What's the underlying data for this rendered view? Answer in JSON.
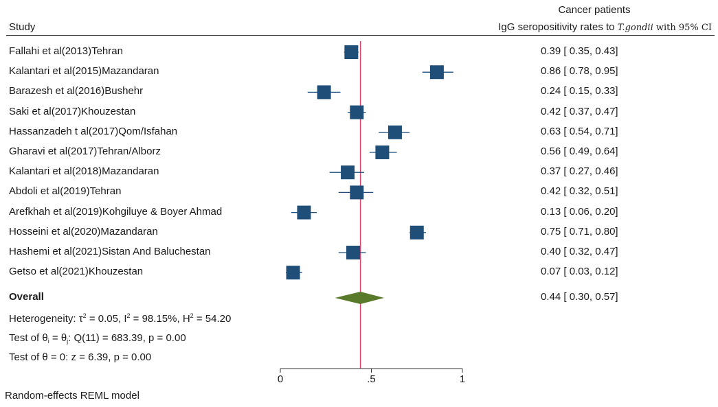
{
  "header": {
    "study_label": "Study",
    "group_label": "Cancer patients",
    "metric_prefix": "IgG seropositivity rates to ",
    "metric_species": "T.gondii",
    "metric_suffix": " with 95% CI"
  },
  "chart_data": {
    "type": "forest",
    "xaxis": {
      "ticks": [
        0,
        0.5,
        1
      ],
      "tick_labels": [
        "0",
        ".5",
        "1"
      ],
      "xlim": [
        0,
        1
      ]
    },
    "overall_line": 0.44,
    "studies": [
      {
        "name": "Fallahi et al(2013)Tehran",
        "est": 0.39,
        "lo": 0.35,
        "hi": 0.43,
        "text": "0.39 [ 0.35,  0.43]"
      },
      {
        "name": "Kalantari et al(2015)Mazandaran",
        "est": 0.86,
        "lo": 0.78,
        "hi": 0.95,
        "text": "0.86 [ 0.78,  0.95]"
      },
      {
        "name": "Barazesh et al(2016)Bushehr",
        "est": 0.24,
        "lo": 0.15,
        "hi": 0.33,
        "text": "0.24 [ 0.15,  0.33]"
      },
      {
        "name": "Saki et al(2017)Khouzestan",
        "est": 0.42,
        "lo": 0.37,
        "hi": 0.47,
        "text": "0.42 [ 0.37,  0.47]"
      },
      {
        "name": "Hassanzadeh t al(2017)Qom/Isfahan",
        "est": 0.63,
        "lo": 0.54,
        "hi": 0.71,
        "text": "0.63 [ 0.54,  0.71]"
      },
      {
        "name": "Gharavi et al(2017)Tehran/Alborz",
        "est": 0.56,
        "lo": 0.49,
        "hi": 0.64,
        "text": "0.56 [ 0.49,  0.64]"
      },
      {
        "name": "Kalantari et al(2018)Mazandaran",
        "est": 0.37,
        "lo": 0.27,
        "hi": 0.46,
        "text": "0.37 [ 0.27,  0.46]"
      },
      {
        "name": "Abdoli et al(2019)Tehran",
        "est": 0.42,
        "lo": 0.32,
        "hi": 0.51,
        "text": "0.42 [ 0.32,  0.51]"
      },
      {
        "name": "Arefkhah et al(2019)Kohgiluye & Boyer Ahmad",
        "est": 0.13,
        "lo": 0.06,
        "hi": 0.2,
        "text": "0.13 [ 0.06,  0.20]"
      },
      {
        "name": "Hosseini et al(2020)Mazandaran",
        "est": 0.75,
        "lo": 0.71,
        "hi": 0.8,
        "text": "0.75 [ 0.71,  0.80]"
      },
      {
        "name": "Hashemi et al(2021)Sistan And Baluchestan",
        "est": 0.4,
        "lo": 0.32,
        "hi": 0.47,
        "text": "0.40 [ 0.32,  0.47]"
      },
      {
        "name": "Getso et al(2021)Khouzestan",
        "est": 0.07,
        "lo": 0.03,
        "hi": 0.12,
        "text": "0.07 [ 0.03,  0.12]"
      }
    ],
    "overall": {
      "name": "Overall",
      "est": 0.44,
      "lo": 0.3,
      "hi": 0.57,
      "text": "0.44 [ 0.30,  0.57]"
    },
    "colors": {
      "marker": "#1f4e79",
      "diamond": "#5a7a2b",
      "refline": "#d9436a"
    }
  },
  "stats": {
    "heterogeneity_prefix": "Heterogeneity: ",
    "tau_sym": "τ",
    "tau_val": " = 0.05, ",
    "i_sym": "I",
    "i_val": " = 98.15%, ",
    "h_sym": "H",
    "h_val": " = 54.20",
    "sup2": "2",
    "test1_prefix": "Test of ",
    "theta": "θ",
    "sub_i": "i",
    "sub_j": "j",
    "eq": " = ",
    "test1_suffix": ": Q(11) = 683.39, p = 0.00",
    "test2": "Test of θ = 0: z = 6.39, p = 0.00"
  },
  "footnote": "Random-effects REML model"
}
